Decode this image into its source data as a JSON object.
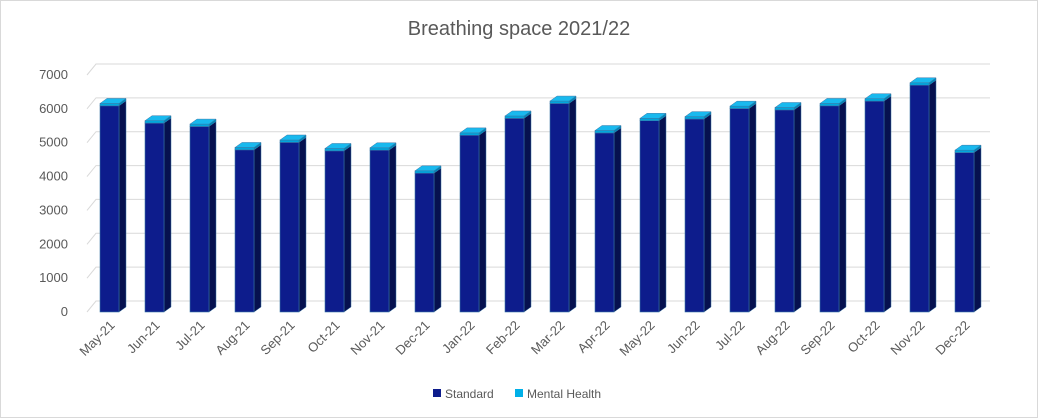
{
  "chart_data": {
    "type": "bar",
    "stacked": true,
    "style": "3d-column",
    "title": "Breathing space 2021/22",
    "xlabel": "",
    "ylabel": "",
    "ylim": [
      0,
      7000
    ],
    "yticks": [
      "0",
      "1000",
      "2000",
      "3000",
      "4000",
      "5000",
      "6000",
      "7000"
    ],
    "grid": true,
    "legend_position": "bottom",
    "categories": [
      "May-21",
      "Jun-21",
      "Jul-21",
      "Aug-21",
      "Sep-21",
      "Oct-21",
      "Nov-21",
      "Dec-21",
      "Jan-22",
      "Feb-22",
      "Mar-22",
      "Apr-22",
      "May-22",
      "Jun-22",
      "Jul-22",
      "Aug-22",
      "Sep-22",
      "Oct-22",
      "Nov-22",
      "Dec-22"
    ],
    "series": [
      {
        "name": "Standard",
        "color": "#0D1C8C",
        "values": [
          6090,
          5580,
          5480,
          4790,
          5010,
          4760,
          4780,
          4100,
          5220,
          5720,
          6160,
          5290,
          5650,
          5700,
          6010,
          5970,
          6090,
          6230,
          6700,
          4710
        ]
      },
      {
        "name": "Mental Health",
        "color": "#00B0E8",
        "values": [
          70,
          70,
          70,
          70,
          70,
          70,
          70,
          70,
          70,
          70,
          70,
          70,
          70,
          70,
          70,
          70,
          70,
          70,
          70,
          70
        ]
      }
    ]
  }
}
